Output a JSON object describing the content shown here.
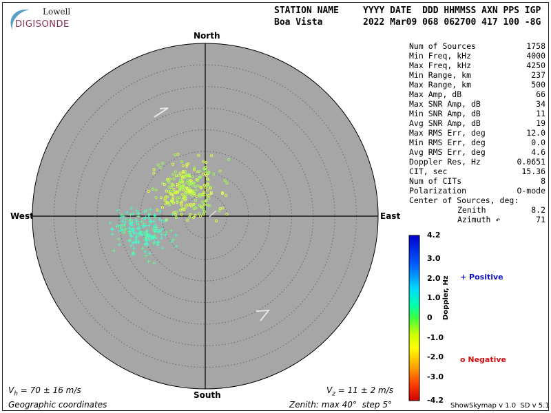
{
  "logo": {
    "brand_top": "Lowell",
    "brand_bottom": "DIGISONDE"
  },
  "header": {
    "label_station": "STATION NAME",
    "label_cols": "YYYY DATE  DDD HHMMSS AXN PPS IGP",
    "station": "Boa Vista",
    "values": "2022 Mar09 068 062700 417 100 -8G"
  },
  "compass": {
    "north": "North",
    "south": "South",
    "east": "East",
    "west": "West"
  },
  "stats": [
    {
      "k": "Num of Sources",
      "v": "1758"
    },
    {
      "k": "Min Freq, kHz",
      "v": "4000"
    },
    {
      "k": "Max Freq, kHz",
      "v": "4250"
    },
    {
      "k": "Min Range, km",
      "v": "237"
    },
    {
      "k": "Max Range, km",
      "v": "500"
    },
    {
      "k": "Max Amp, dB",
      "v": "66"
    },
    {
      "k": "Max SNR Amp, dB",
      "v": "34"
    },
    {
      "k": "Min SNR Amp, dB",
      "v": "11"
    },
    {
      "k": "Avg SNR Amp, dB",
      "v": "19"
    },
    {
      "k": "Max RMS Err, deg",
      "v": "12.0"
    },
    {
      "k": "Min RMS Err, deg",
      "v": "0.0"
    },
    {
      "k": "Avg RMS Err, deg",
      "v": "4.6"
    },
    {
      "k": "Doppler Res, Hz",
      "v": "0.0651"
    },
    {
      "k": "CIT, sec",
      "v": "15.36"
    },
    {
      "k": "Num of CITs",
      "v": "8"
    },
    {
      "k": "Polarization",
      "v": "O-mode"
    },
    {
      "k": "Center of Sources, deg:",
      "v": ""
    },
    {
      "k": "Zenith",
      "v": "8.2",
      "indent": true
    },
    {
      "k": "Azimuth ↶",
      "v": "71",
      "indent": true
    }
  ],
  "colorbar": {
    "ticks": [
      "4.2",
      "3.0",
      "2.0",
      "1.0",
      "0",
      "-1.0",
      "-2.0",
      "-3.0",
      "-4.2"
    ],
    "label": "Doppler, Hz",
    "min": -4.2,
    "max": 4.2
  },
  "legend": {
    "positive": "+ Positive",
    "negative": "o Negative",
    "positive_color": "#1010c0",
    "negative_color": "#d01010"
  },
  "footer": {
    "vh": "V",
    "vh_sub": "h",
    "vh_rest": " = 70 ± 16 m/s",
    "vz": "V",
    "vz_sub": "z",
    "vz_rest": " = 11 ± 2 m/s",
    "coords": "Geographic coordinates",
    "zenith": "Zenith: max 40°  step 5°",
    "version": "ShowSkymap v 1.0  SD v 5.1"
  },
  "skymap": {
    "max_zenith_deg": 40,
    "step_deg": 5,
    "source_count": 1758,
    "center_zenith_deg": 8.2,
    "center_azimuth_deg": 71
  },
  "colors": {
    "disk": "#a6a6a6",
    "grid": "#6a6a6a"
  }
}
